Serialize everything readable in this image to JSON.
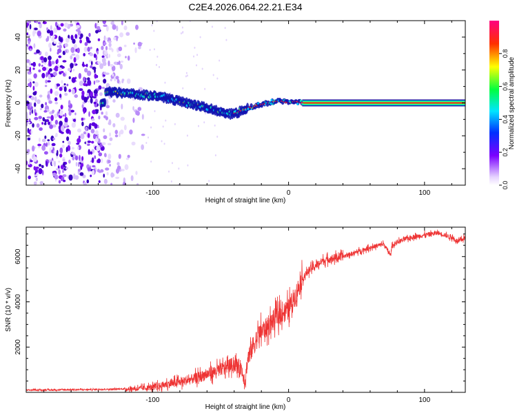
{
  "figure_title": "C2E4.2026.064.22.21.E34",
  "chart_data": [
    {
      "type": "heatmap",
      "title": "C2E4.2026.064.22.21.E34",
      "xlabel": "Height of straight line (km)",
      "ylabel": "Frequency (Hz)",
      "xlim": [
        -193,
        130
      ],
      "ylim": [
        -50,
        50
      ],
      "x_ticks": [
        -100,
        0,
        100
      ],
      "x_tick_labels": [
        "-100",
        "0",
        "100"
      ],
      "y_ticks": [
        -40,
        -20,
        0,
        20,
        40
      ],
      "y_tick_labels": [
        "-40",
        "-20",
        "0",
        "20",
        "40"
      ],
      "colorbar": {
        "label": "Normalized spectral amplitude",
        "range": [
          0,
          1
        ],
        "ticks": [
          0.0,
          0.2,
          0.4,
          0.6,
          0.8
        ],
        "tick_labels": [
          "0.0",
          "0.2",
          "0.4",
          "0.6",
          "0.8"
        ]
      },
      "carrier_track": {
        "x": [
          -135,
          -110,
          -95,
          -85,
          -75,
          -65,
          -55,
          -45,
          -38,
          -30,
          -25,
          -20,
          -15,
          -10,
          -5,
          0,
          5,
          10,
          130
        ],
        "freq": [
          7,
          5,
          4,
          2,
          0,
          -2,
          -4,
          -7,
          -6,
          -3,
          -2,
          -1,
          0,
          1,
          1,
          0,
          1,
          0,
          0
        ]
      },
      "noise_region_x": [
        -193,
        -105
      ]
    },
    {
      "type": "line",
      "title": "",
      "xlabel": "Height of straight line (km)",
      "ylabel": "SNR (10 * v/v)",
      "xlim": [
        -193,
        130
      ],
      "ylim": [
        0,
        7300
      ],
      "x_ticks": [
        -100,
        0,
        100
      ],
      "x_tick_labels": [
        "-100",
        "0",
        "100"
      ],
      "y_ticks": [
        2000,
        4000,
        6000
      ],
      "y_tick_labels": [
        "2000",
        "4000",
        "6000"
      ],
      "series": [
        {
          "name": "SNR",
          "color": "#ee3333",
          "x": [
            -193,
            -170,
            -150,
            -130,
            -110,
            -100,
            -90,
            -80,
            -70,
            -60,
            -50,
            -45,
            -40,
            -35,
            -32,
            -30,
            -25,
            -20,
            -15,
            -10,
            -5,
            0,
            5,
            10,
            15,
            20,
            25,
            30,
            40,
            50,
            60,
            70,
            75,
            76,
            80,
            90,
            100,
            110,
            120,
            125,
            130
          ],
          "y": [
            100,
            110,
            120,
            140,
            170,
            220,
            350,
            450,
            600,
            800,
            1000,
            1150,
            1250,
            1100,
            500,
            1500,
            2200,
            2700,
            2900,
            3300,
            3500,
            3700,
            4300,
            5000,
            5400,
            5600,
            5800,
            5900,
            6000,
            6200,
            6400,
            6550,
            6050,
            6450,
            6650,
            6850,
            6950,
            7050,
            6850,
            6650,
            6850
          ]
        }
      ]
    }
  ]
}
